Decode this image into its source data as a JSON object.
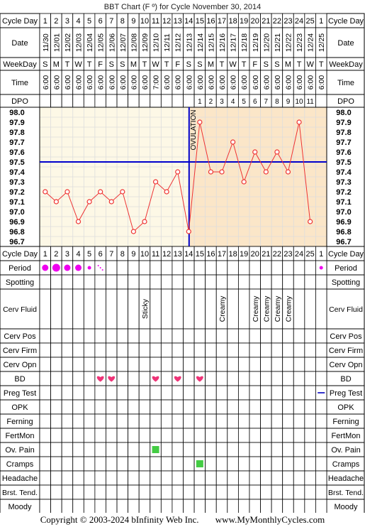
{
  "title": "BBT Chart (F º) for Cycle November 30, 2014",
  "footer": {
    "copyright": "Copyright © 2003-2024 bInfinity Web Inc.",
    "site": "www.MyMonthlyCycles.com"
  },
  "labels": {
    "cycle_day": "Cycle Day",
    "date": "Date",
    "weekday": "WeekDay",
    "time": "Time",
    "dpo": "DPO",
    "ovulation": "OVULATION"
  },
  "columns": {
    "cycle_day": [
      "1",
      "2",
      "3",
      "4",
      "5",
      "6",
      "7",
      "8",
      "9",
      "10",
      "11",
      "12",
      "13",
      "14",
      "15",
      "16",
      "17",
      "18",
      "19",
      "20",
      "21",
      "22",
      "23",
      "24",
      "25",
      "1"
    ],
    "date": [
      "11/30",
      "12/01",
      "12/02",
      "12/03",
      "12/04",
      "12/05",
      "12/06",
      "12/07",
      "12/08",
      "12/09",
      "12/10",
      "12/11",
      "12/12",
      "12/13",
      "12/14",
      "12/15",
      "12/16",
      "12/17",
      "12/18",
      "12/19",
      "12/20",
      "12/21",
      "12/22",
      "12/23",
      "12/24",
      "12/25"
    ],
    "weekday": [
      "S",
      "M",
      "T",
      "W",
      "T",
      "F",
      "S",
      "S",
      "M",
      "T",
      "W",
      "T",
      "F",
      "S",
      "S",
      "M",
      "T",
      "W",
      "T",
      "F",
      "S",
      "S",
      "M",
      "T",
      "W",
      "T"
    ],
    "time": [
      "6:00",
      "6:00",
      "6:00",
      "6:00",
      "6:00",
      "6:00",
      "6:00",
      "6:00",
      "6:00",
      "6:00",
      "7:00",
      "6:00",
      "6:00",
      "6:00",
      "6:00",
      "6:00",
      "6:00",
      "6:00",
      "6:00",
      "6:00",
      "6:00",
      "6:00",
      "6:00",
      "6:00",
      "6:00",
      "6:00"
    ],
    "dpo": [
      "",
      "",
      "",
      "",
      "",
      "",
      "",
      "",
      "",
      "",
      "",
      "",
      "",
      "",
      "1",
      "2",
      "3",
      "4",
      "5",
      "6",
      "7",
      "8",
      "9",
      "10",
      "11",
      ""
    ]
  },
  "chart_data": {
    "type": "line",
    "title": "BBT Chart (F º) for Cycle November 30, 2014",
    "x": [
      1,
      2,
      3,
      4,
      5,
      6,
      7,
      8,
      9,
      10,
      11,
      12,
      13,
      14,
      15,
      16,
      17,
      18,
      19,
      20,
      21,
      22,
      23,
      24,
      25
    ],
    "y": [
      97.2,
      97.1,
      97.2,
      96.9,
      97.1,
      97.2,
      97.1,
      97.2,
      96.8,
      96.9,
      97.3,
      97.2,
      97.4,
      96.8,
      97.9,
      97.4,
      97.4,
      97.7,
      97.3,
      97.6,
      97.4,
      97.6,
      97.4,
      97.9,
      96.9
    ],
    "yticks": [
      "98.0",
      "97.9",
      "97.8",
      "97.7",
      "97.6",
      "97.5",
      "97.4",
      "97.3",
      "97.2",
      "97.1",
      "97.0",
      "96.9",
      "96.8",
      "96.7"
    ],
    "ylim": [
      96.7,
      98.0
    ],
    "coverline": 97.5,
    "ovulation_day": 14,
    "grid": true,
    "colors": {
      "line": "#ee3333",
      "coverline": "#0000cc",
      "ovulation": "#0000cc",
      "pre_ovulation_bg": "#fdf8e6",
      "post_ovulation_bg": "#fbe6c8",
      "grid": "#dddddd"
    }
  },
  "rows": [
    {
      "label": "Period",
      "type": "dot",
      "color": "#ee00ee",
      "values": [
        {
          "day": 1,
          "size": "med"
        },
        {
          "day": 2,
          "size": "big"
        },
        {
          "day": 3,
          "size": "med"
        },
        {
          "day": 4,
          "size": "med"
        },
        {
          "day": 5,
          "size": "small"
        },
        {
          "day": 6,
          "size": "spot"
        },
        {
          "day": 26,
          "size": "small"
        }
      ]
    },
    {
      "label": "Spotting",
      "type": "none",
      "values": []
    },
    {
      "label": "Cerv Fluid",
      "type": "text",
      "values": [
        {
          "day": 10,
          "text": "Sticky"
        },
        {
          "day": 17,
          "text": "Creamy"
        },
        {
          "day": 20,
          "text": "Creamy"
        },
        {
          "day": 21,
          "text": "Creamy"
        },
        {
          "day": 22,
          "text": "Creamy"
        },
        {
          "day": 23,
          "text": "Creamy"
        }
      ]
    },
    {
      "label": "Cerv Pos",
      "type": "none",
      "values": []
    },
    {
      "label": "Cerv Firm",
      "type": "none",
      "values": []
    },
    {
      "label": "Cerv Opn",
      "type": "none",
      "values": []
    },
    {
      "label": "BD",
      "type": "heart",
      "color": "#ee3377",
      "values": [
        {
          "day": 6
        },
        {
          "day": 7
        },
        {
          "day": 11
        },
        {
          "day": 13
        },
        {
          "day": 15
        }
      ]
    },
    {
      "label": "Preg Test",
      "type": "dash",
      "color": "#3333cc",
      "values": [
        {
          "day": 26
        }
      ]
    },
    {
      "label": "OPK",
      "type": "none",
      "values": []
    },
    {
      "label": "Ferning",
      "type": "none",
      "values": []
    },
    {
      "label": "FertMon",
      "type": "none",
      "values": []
    },
    {
      "label": "Ov. Pain",
      "type": "square",
      "color": "#44cc44",
      "values": [
        {
          "day": 11
        }
      ]
    },
    {
      "label": "Cramps",
      "type": "square",
      "color": "#44cc44",
      "values": [
        {
          "day": 15
        }
      ]
    },
    {
      "label": "Headache",
      "type": "none",
      "values": []
    },
    {
      "label": "Brst. Tend.",
      "type": "none",
      "values": []
    },
    {
      "label": "Moody",
      "type": "none",
      "values": []
    }
  ]
}
